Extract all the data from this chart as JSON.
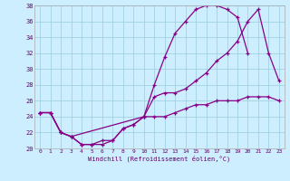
{
  "xlabel": "Windchill (Refroidissement éolien,°C)",
  "bg_color": "#cceeff",
  "line_color": "#880088",
  "grid_color": "#99ccdd",
  "xlim": [
    -0.5,
    23.5
  ],
  "ylim": [
    20,
    38
  ],
  "yticks": [
    20,
    22,
    24,
    26,
    28,
    30,
    32,
    34,
    36,
    38
  ],
  "xticks": [
    0,
    1,
    2,
    3,
    4,
    5,
    6,
    7,
    8,
    9,
    10,
    11,
    12,
    13,
    14,
    15,
    16,
    17,
    18,
    19,
    20,
    21,
    22,
    23
  ],
  "series": [
    {
      "x": [
        0,
        1,
        2,
        3,
        4,
        5,
        6,
        7,
        8,
        9,
        10,
        11,
        12,
        13,
        14,
        15,
        16,
        17,
        18,
        19,
        20
      ],
      "y": [
        24.5,
        24.5,
        22.0,
        21.5,
        20.5,
        20.5,
        20.5,
        21.0,
        22.5,
        23.0,
        24.0,
        28.0,
        31.5,
        34.5,
        36.0,
        37.5,
        38.0,
        38.0,
        37.5,
        36.5,
        32.0
      ]
    },
    {
      "x": [
        0,
        1,
        2,
        3,
        10,
        11,
        12,
        13,
        14,
        15,
        16,
        17,
        18,
        19,
        20,
        21,
        22,
        23
      ],
      "y": [
        24.5,
        24.5,
        22.0,
        21.5,
        24.0,
        26.5,
        27.0,
        27.0,
        27.5,
        28.5,
        29.5,
        31.0,
        32.0,
        33.5,
        36.0,
        37.5,
        32.0,
        28.5
      ]
    },
    {
      "x": [
        0,
        1,
        2,
        3,
        4,
        5,
        6,
        7,
        8,
        9,
        10,
        11,
        12,
        13,
        14,
        15,
        16,
        17,
        18,
        19,
        20,
        21,
        22,
        23
      ],
      "y": [
        24.5,
        24.5,
        22.0,
        21.5,
        20.5,
        20.5,
        21.0,
        21.0,
        22.5,
        23.0,
        24.0,
        24.0,
        24.0,
        24.5,
        25.0,
        25.5,
        25.5,
        26.0,
        26.0,
        26.0,
        26.5,
        26.5,
        26.5,
        26.0
      ]
    }
  ]
}
